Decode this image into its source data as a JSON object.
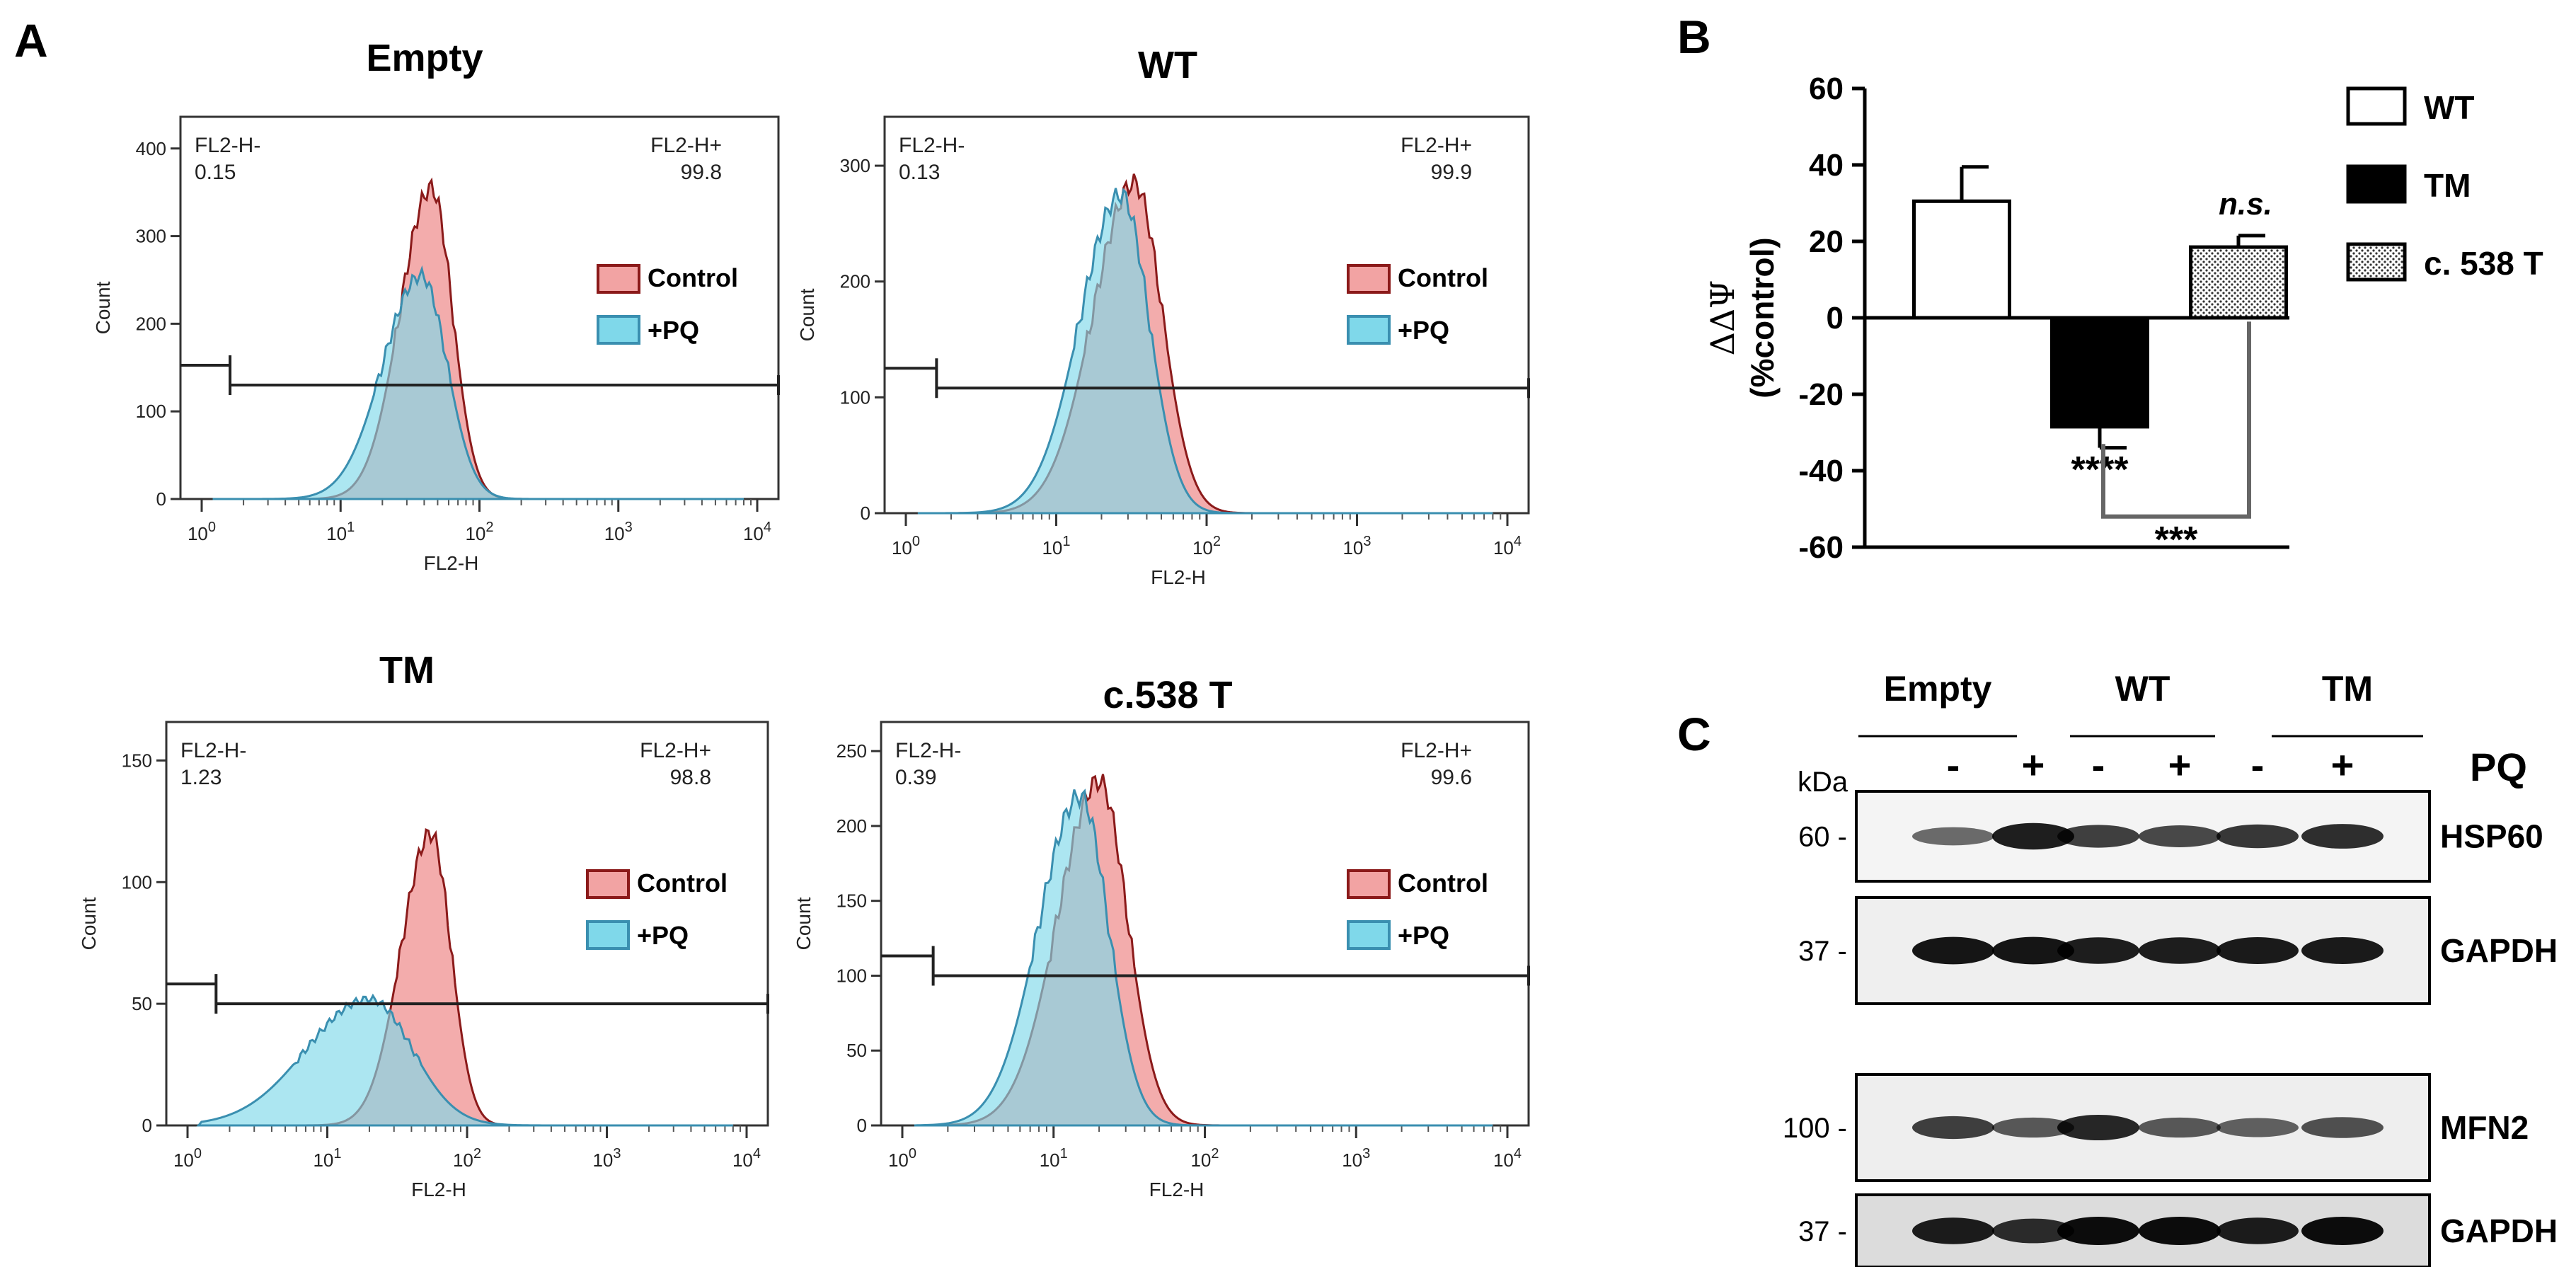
{
  "chart_data": [
    {
      "type": "area",
      "id": "flow-empty",
      "title": "Empty",
      "xlabel": "FL2-H",
      "ylabel": "Count",
      "xscale": "log",
      "xlim": [
        1,
        10000
      ],
      "ylim": [
        0,
        420
      ],
      "yticks": [
        0,
        100,
        200,
        300,
        400
      ],
      "gate_left": {
        "label": "FL2-H-",
        "value": "0.15"
      },
      "gate_right": {
        "label": "FL2-H+",
        "value": "99.8"
      },
      "gate_level": 130,
      "series": [
        {
          "name": "Control",
          "peak_x": 45,
          "peak_count": 355,
          "width": 0.18,
          "color": "#f2a3a3",
          "edge": "#8b1a1a"
        },
        {
          "name": "+PQ",
          "peak_x": 38,
          "peak_count": 255,
          "width": 0.22,
          "color": "#7fd8ea",
          "edge": "#3a8fb0"
        }
      ]
    },
    {
      "type": "area",
      "id": "flow-wt",
      "title": "WT",
      "xlabel": "FL2-H",
      "ylabel": "Count",
      "xscale": "log",
      "xlim": [
        1,
        10000
      ],
      "ylim": [
        0,
        330
      ],
      "yticks": [
        0,
        100,
        200,
        300
      ],
      "gate_left": {
        "label": "FL2-H-",
        "value": "0.13"
      },
      "gate_right": {
        "label": "FL2-H+",
        "value": "99.9"
      },
      "gate_level": 108,
      "series": [
        {
          "name": "Control",
          "peak_x": 33,
          "peak_count": 285,
          "width": 0.22,
          "color": "#f2a3a3",
          "edge": "#8b1a1a"
        },
        {
          "name": "+PQ",
          "peak_x": 27,
          "peak_count": 275,
          "width": 0.22,
          "color": "#7fd8ea",
          "edge": "#3a8fb0"
        }
      ]
    },
    {
      "type": "area",
      "id": "flow-tm",
      "title": "TM",
      "xlabel": "FL2-H",
      "ylabel": "Count",
      "xscale": "log",
      "xlim": [
        1,
        10000
      ],
      "ylim": [
        0,
        160
      ],
      "yticks": [
        0,
        50,
        100,
        150
      ],
      "gate_left": {
        "label": "FL2-H-",
        "value": "1.23"
      },
      "gate_right": {
        "label": "FL2-H+",
        "value": "98.8"
      },
      "gate_level": 50,
      "series": [
        {
          "name": "Control",
          "peak_x": 55,
          "peak_count": 120,
          "width": 0.17,
          "color": "#f2a3a3",
          "edge": "#8b1a1a"
        },
        {
          "name": "+PQ",
          "peak_x": 20,
          "peak_count": 52,
          "width": 0.36,
          "color": "#7fd8ea",
          "edge": "#3a8fb0"
        }
      ]
    },
    {
      "type": "area",
      "id": "flow-c538t",
      "title": "c.538 T",
      "xlabel": "FL2-H",
      "ylabel": "Count",
      "xscale": "log",
      "xlim": [
        1,
        10000
      ],
      "ylim": [
        0,
        260
      ],
      "yticks": [
        0,
        50,
        100,
        150,
        200,
        250
      ],
      "gate_left": {
        "label": "FL2-H-",
        "value": "0.39"
      },
      "gate_right": {
        "label": "FL2-H+",
        "value": "99.6"
      },
      "gate_level": 100,
      "series": [
        {
          "name": "Control",
          "peak_x": 20,
          "peak_count": 230,
          "width": 0.22,
          "color": "#f2a3a3",
          "edge": "#8b1a1a"
        },
        {
          "name": "+PQ",
          "peak_x": 15,
          "peak_count": 220,
          "width": 0.22,
          "color": "#7fd8ea",
          "edge": "#3a8fb0"
        }
      ]
    },
    {
      "type": "bar",
      "id": "bar-mmp",
      "categories": [
        "WT",
        "TM",
        "c. 538 T"
      ],
      "values": [
        30.5,
        -28.5,
        18.5
      ],
      "errors": [
        9,
        5.5,
        3
      ],
      "fills": [
        "#ffffff",
        "#000000",
        "pattern"
      ],
      "ylabel_line1": "ΔΔΨ",
      "ylabel_line2": "(%control)",
      "ylim": [
        -60,
        60
      ],
      "yticks": [
        "60",
        "40",
        "20",
        "0",
        "-20",
        "-40",
        "-60"
      ],
      "annotations": {
        "tm_star": "****",
        "ns": "n.s.",
        "bracket": "***"
      },
      "legend": [
        "WT",
        "TM",
        "c. 538 T"
      ]
    }
  ],
  "panels": {
    "a": "A",
    "b": "B",
    "c": "C"
  },
  "flow_legend": {
    "control": "Control",
    "pq": "+PQ"
  },
  "xticks": {
    "base": "10",
    "exps": [
      "0",
      "1",
      "2",
      "3",
      "4"
    ]
  },
  "blot": {
    "lanes": [
      "Empty",
      "WT",
      "TM"
    ],
    "pq_signs": [
      "-",
      "+",
      "-",
      "+",
      "-",
      "+"
    ],
    "pq_label": "PQ",
    "kda": "kDa",
    "rows": [
      {
        "mw": "60 -",
        "protein": "HSP60",
        "intensity": [
          0.45,
          0.9,
          0.7,
          0.65,
          0.75,
          0.8
        ],
        "bg": "#f4f4f4"
      },
      {
        "mw": "37 -",
        "protein": "GAPDH",
        "intensity": [
          0.95,
          0.95,
          0.9,
          0.9,
          0.92,
          0.92
        ],
        "bg": "#efefef"
      },
      {
        "mw": "100 -",
        "protein": "MFN2",
        "intensity": [
          0.7,
          0.55,
          0.85,
          0.55,
          0.5,
          0.6
        ],
        "bg": "#eeeeee"
      },
      {
        "mw": "37 -",
        "protein": "GAPDH",
        "intensity": [
          0.9,
          0.8,
          1.0,
          1.0,
          0.9,
          1.0
        ],
        "bg": "#dcdcdc"
      }
    ]
  }
}
